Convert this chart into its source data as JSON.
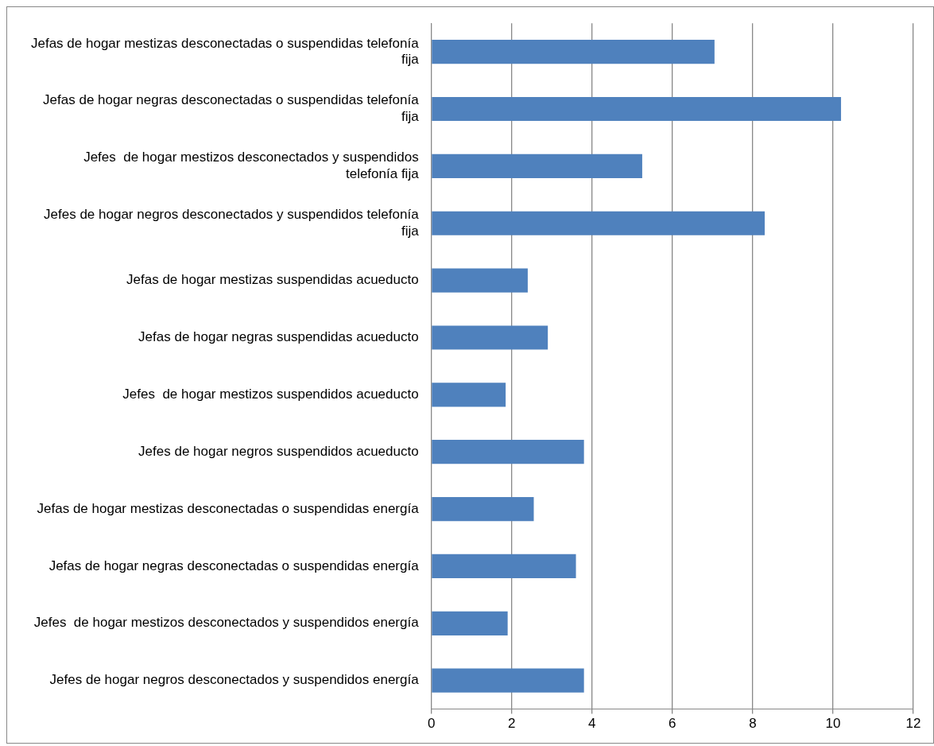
{
  "chart_data": {
    "type": "bar",
    "orientation": "horizontal",
    "color": "#4f81bd",
    "grid": "x",
    "legend": false,
    "categories": [
      "Jefas de hogar mestizas desconectadas o suspendidas telefonía fija",
      "Jefas de hogar negras desconectadas o suspendidas telefonía fija",
      "Jefes  de hogar mestizos desconectados y suspendidos telefonía fija",
      "Jefes de hogar negros desconectados y suspendidos telefonía fija",
      "Jefas de hogar mestizas suspendidas acueducto",
      "Jefas de hogar negras suspendidas acueducto",
      "Jefes  de hogar mestizos suspendidos acueducto",
      "Jefes de hogar negros suspendidos acueducto",
      "Jefas de hogar mestizas desconectadas o suspendidas energía",
      "Jefas de hogar negras desconectadas o suspendidas energía",
      "Jefes  de hogar mestizos desconectados y suspendidos energía",
      "Jefes de hogar negros desconectados y suspendidos energía"
    ],
    "values": [
      7.05,
      10.2,
      5.25,
      8.3,
      2.4,
      2.9,
      1.85,
      3.8,
      2.55,
      3.6,
      1.9,
      3.8
    ],
    "xlim": [
      0,
      12
    ],
    "xticks": [
      0,
      2,
      4,
      6,
      8,
      10,
      12
    ]
  }
}
